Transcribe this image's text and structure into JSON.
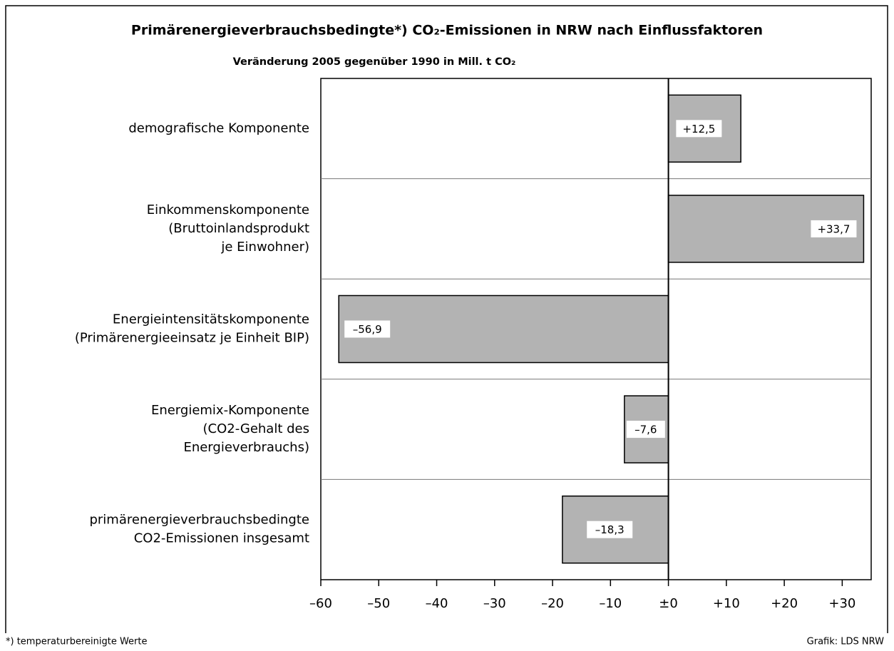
{
  "chart_data": {
    "type": "bar",
    "orientation": "horizontal",
    "title": "Primärenergieverbrauchsbedingte*) CO₂-Emissionen in NRW nach Einflussfaktoren",
    "subtitle": "Veränderung 2005 gegenüber 1990 in Mill. t CO₂",
    "categories": [
      [
        "demografische Komponente"
      ],
      [
        "Einkommenskomponente",
        "(Bruttoinlandsprodukt",
        "je Einwohner)"
      ],
      [
        "Energieintensitätskomponente",
        "(Primärenergieeinsatz je Einheit BIP)"
      ],
      [
        "Energiemix-Komponente",
        "(CO2-Gehalt des",
        "Energieverbrauchs)"
      ],
      [
        "primärenergieverbrauchsbedingte",
        "CO2-Emissionen insgesamt"
      ]
    ],
    "values": [
      12.5,
      33.7,
      -56.9,
      -7.6,
      -18.3
    ],
    "value_labels": [
      "+12,5",
      "+33,7",
      "–56,9",
      "–7,6",
      "–18,3"
    ],
    "color": "#b3b3b3",
    "xlim": [
      -60,
      35
    ],
    "xticks": [
      {
        "value": -60,
        "label": "–60"
      },
      {
        "value": -50,
        "label": "–50"
      },
      {
        "value": -40,
        "label": "–40"
      },
      {
        "value": -30,
        "label": "–30"
      },
      {
        "value": -20,
        "label": "–20"
      },
      {
        "value": -10,
        "label": "–10"
      },
      {
        "value": 0,
        "label": "±0"
      },
      {
        "value": 10,
        "label": "+10"
      },
      {
        "value": 20,
        "label": "+20"
      },
      {
        "value": 30,
        "label": "+30"
      }
    ],
    "footnote": "*) temperaturbereinigte Werte",
    "source": "Grafik: LDS NRW"
  }
}
